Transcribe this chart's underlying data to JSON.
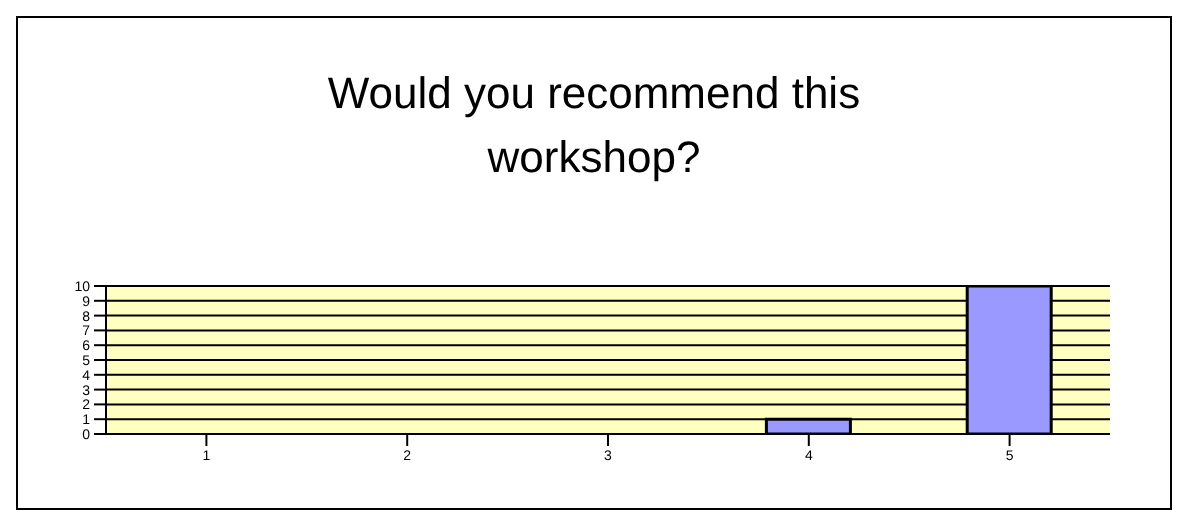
{
  "chart_data": {
    "type": "bar",
    "title": "Would you recommend this workshop?",
    "categories": [
      "1",
      "2",
      "3",
      "4",
      "5"
    ],
    "values": [
      0,
      0,
      0,
      1,
      10
    ],
    "color": "#9999ff",
    "ylim": [
      0,
      10
    ],
    "yticks": [
      0,
      1,
      2,
      3,
      4,
      5,
      6,
      7,
      8,
      9,
      10
    ],
    "grid": "y"
  }
}
